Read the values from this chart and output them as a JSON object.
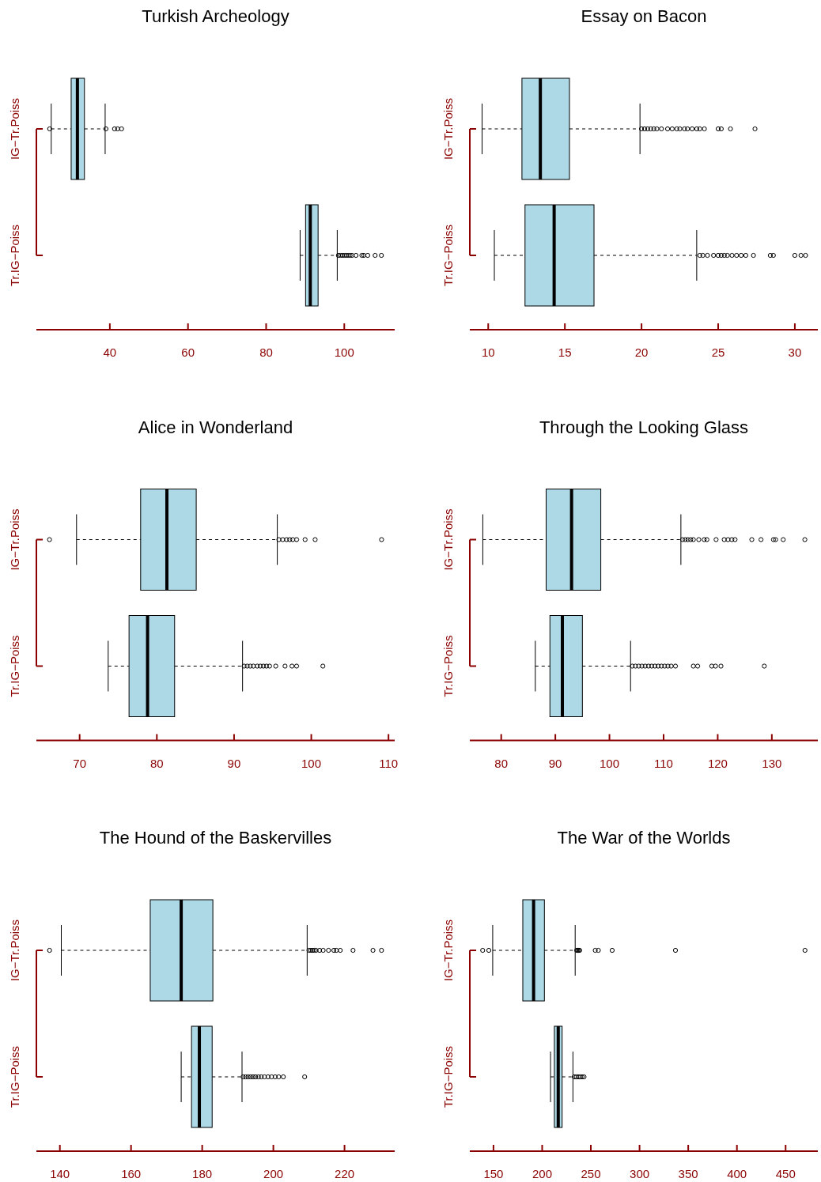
{
  "chart_data": [
    {
      "type": "box",
      "title": "Turkish Archeology",
      "orientation": "horizontal",
      "categories": [
        "IG−Tr.Poiss",
        "Tr.IG−Poiss"
      ],
      "color": "#add8e6",
      "xlim": [
        21.2,
        112.9
      ],
      "xticks": [
        40,
        60,
        80,
        100
      ],
      "boxes": [
        {
          "low": 25.0,
          "q1": 30.1,
          "median": 31.7,
          "q3": 33.5,
          "high": 38.8,
          "outliers": [
            24.6,
            39.0,
            41.2,
            42.0,
            43.0
          ]
        },
        {
          "low": 88.7,
          "q1": 90.1,
          "median": 91.3,
          "q3": 93.3,
          "high": 98.2,
          "outliers": [
            98.5,
            99.0,
            99.5,
            100.0,
            100.5,
            101.0,
            101.5,
            102.0,
            103.0,
            104.5,
            105.0,
            106.0,
            107.9,
            109.5
          ]
        }
      ]
    },
    {
      "type": "box",
      "title": "Essay on Bacon",
      "orientation": "horizontal",
      "categories": [
        "IG−Tr.Poiss",
        "Tr.IG−Poiss"
      ],
      "color": "#add8e6",
      "xlim": [
        8.8,
        31.5
      ],
      "xticks": [
        10,
        15,
        20,
        25,
        30
      ],
      "boxes": [
        {
          "low": 9.6,
          "q1": 12.2,
          "median": 13.4,
          "q3": 15.3,
          "high": 19.9,
          "outliers": [
            20.0,
            20.2,
            20.4,
            20.6,
            20.8,
            21.0,
            21.3,
            21.7,
            22.0,
            22.3,
            22.5,
            22.8,
            23.0,
            23.3,
            23.6,
            23.8,
            24.1,
            25.0,
            25.2,
            25.8,
            27.4
          ]
        },
        {
          "low": 10.4,
          "q1": 12.4,
          "median": 14.3,
          "q3": 16.9,
          "high": 23.6,
          "outliers": [
            23.8,
            24.0,
            24.3,
            24.7,
            25.0,
            25.2,
            25.4,
            25.6,
            25.9,
            26.2,
            26.5,
            26.8,
            27.3,
            28.4,
            28.6,
            30.0,
            30.4,
            30.7
          ]
        }
      ]
    },
    {
      "type": "box",
      "title": "Alice in Wonderland",
      "orientation": "horizontal",
      "categories": [
        "IG−Tr.Poiss",
        "Tr.IG−Poiss"
      ],
      "color": "#add8e6",
      "xlim": [
        64.4,
        110.8
      ],
      "xticks": [
        70,
        80,
        90,
        100,
        110
      ],
      "boxes": [
        {
          "low": 69.6,
          "q1": 77.9,
          "median": 81.3,
          "q3": 85.1,
          "high": 95.6,
          "outliers": [
            66.1,
            95.8,
            96.3,
            96.8,
            97.2,
            97.6,
            98.1,
            99.2,
            100.5,
            109.1
          ]
        },
        {
          "low": 73.7,
          "q1": 76.4,
          "median": 78.8,
          "q3": 82.3,
          "high": 91.1,
          "outliers": [
            91.3,
            91.7,
            92.1,
            92.5,
            93.0,
            93.4,
            93.8,
            94.2,
            94.6,
            95.4,
            96.6,
            97.5,
            98.1,
            101.5
          ]
        }
      ]
    },
    {
      "type": "box",
      "title": "Through the Looking Glass",
      "orientation": "horizontal",
      "categories": [
        "IG−Tr.Poiss",
        "Tr.IG−Poiss"
      ],
      "color": "#add8e6",
      "xlim": [
        74.2,
        138.5
      ],
      "xticks": [
        80,
        90,
        100,
        110,
        120,
        130
      ],
      "boxes": [
        {
          "low": 76.6,
          "q1": 88.3,
          "median": 93.0,
          "q3": 98.4,
          "high": 113.2,
          "outliers": [
            113.5,
            114.0,
            114.5,
            115.0,
            115.5,
            116.5,
            117.5,
            118.0,
            119.7,
            121.2,
            121.9,
            122.6,
            123.2,
            126.3,
            128.0,
            130.3,
            130.7,
            132.1,
            136.1
          ]
        },
        {
          "low": 86.3,
          "q1": 89.0,
          "median": 91.3,
          "q3": 95.0,
          "high": 103.9,
          "outliers": [
            104.2,
            104.8,
            105.4,
            106.0,
            106.6,
            107.2,
            107.8,
            108.4,
            109.0,
            109.6,
            110.2,
            110.8,
            111.4,
            112.2,
            115.5,
            116.3,
            118.9,
            119.6,
            120.6,
            128.6
          ]
        }
      ]
    },
    {
      "type": "box",
      "title": "The Hound of the Baskervilles",
      "orientation": "horizontal",
      "categories": [
        "IG−Tr.Poiss",
        "Tr.IG−Poiss"
      ],
      "color": "#add8e6",
      "xlim": [
        133.4,
        234.1
      ],
      "xticks": [
        140,
        160,
        180,
        200,
        220
      ],
      "boxes": [
        {
          "low": 140.4,
          "q1": 165.4,
          "median": 174.1,
          "q3": 183.0,
          "high": 209.5,
          "outliers": [
            137.1,
            210.0,
            210.5,
            211.0,
            211.5,
            212.0,
            213.0,
            214.0,
            215.5,
            217.0,
            217.7,
            218.8,
            222.4,
            228.0,
            230.4
          ]
        },
        {
          "low": 174.1,
          "q1": 177.0,
          "median": 179.2,
          "q3": 182.8,
          "high": 191.2,
          "outliers": [
            191.5,
            192.2,
            192.9,
            193.6,
            194.3,
            195.0,
            195.8,
            196.6,
            197.5,
            198.5,
            199.5,
            200.5,
            201.5,
            202.8,
            208.8
          ]
        }
      ]
    },
    {
      "type": "box",
      "title": "The War of the Worlds",
      "orientation": "horizontal",
      "categories": [
        "IG−Tr.Poiss",
        "Tr.IG−Poiss"
      ],
      "color": "#add8e6",
      "xlim": [
        125.7,
        483.1
      ],
      "xticks": [
        150,
        200,
        250,
        300,
        350,
        400,
        450
      ],
      "boxes": [
        {
          "low": 149.2,
          "q1": 180.1,
          "median": 191.2,
          "q3": 202.3,
          "high": 233.9,
          "outliers": [
            138.9,
            145.2,
            235.5,
            236.5,
            237.5,
            238.5,
            254.5,
            257.7,
            271.9,
            336.9,
            469.9
          ]
        },
        {
          "low": 208.6,
          "q1": 212.5,
          "median": 216.5,
          "q3": 220.5,
          "high": 231.6,
          "outliers": [
            233.0,
            235.0,
            237.0,
            239.0,
            241.0,
            243.0
          ]
        }
      ]
    }
  ]
}
